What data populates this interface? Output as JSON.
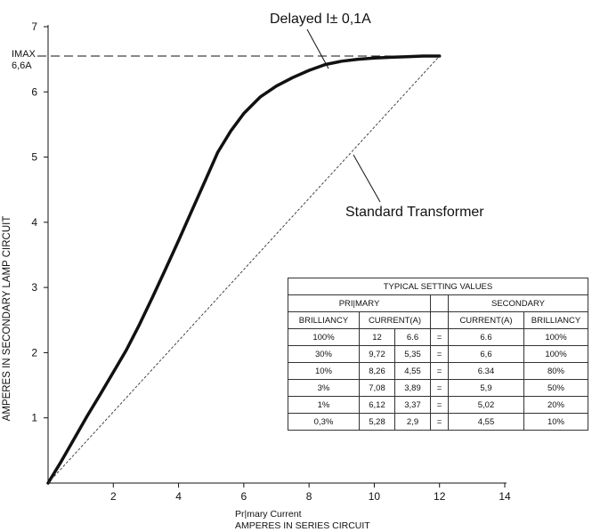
{
  "chart_data": {
    "type": "line",
    "title": "",
    "xlabel": "Pr|mary Current",
    "xlabel2": "AMPERES IN SERIES CIRCUIT",
    "ylabel": "AMPERES IN SECONDARY LAMP CIRCUIT",
    "xlim": [
      0,
      14
    ],
    "ylim": [
      0,
      7
    ],
    "xticks": [
      "2",
      "4",
      "6",
      "8",
      "10",
      "12",
      "14"
    ],
    "yticks": [
      "1",
      "2",
      "3",
      "4",
      "5",
      "6",
      "7"
    ],
    "grid": false,
    "series": [
      {
        "style": "thick",
        "x": [
          0,
          0.4,
          0.8,
          1.2,
          1.6,
          2.0,
          2.4,
          2.8,
          3.2,
          3.6,
          4.0,
          4.4,
          4.8,
          5.2,
          5.6,
          6.0,
          6.5,
          7.0,
          7.5,
          8.0,
          8.5,
          9.0,
          9.5,
          10.0,
          10.5,
          11.0,
          11.5,
          12.0
        ],
        "y": [
          0,
          0.33,
          0.68,
          1.03,
          1.36,
          1.7,
          2.04,
          2.43,
          2.85,
          3.28,
          3.72,
          4.17,
          4.62,
          5.07,
          5.4,
          5.67,
          5.92,
          6.09,
          6.22,
          6.33,
          6.42,
          6.47,
          6.5,
          6.52,
          6.53,
          6.54,
          6.55,
          6.55
        ]
      },
      {
        "style": "thin-dashed",
        "x": [
          0,
          12
        ],
        "y": [
          0,
          6.55
        ]
      }
    ],
    "reference_line": {
      "y": 6.55,
      "label_line1": "IMAX",
      "label_line2": "6,6A"
    },
    "annotations": [
      {
        "text": "Delayed I± 0,1A",
        "x": 8.5,
        "y": 6.42
      },
      {
        "text": "Standard Transformer",
        "x": 9.3,
        "y": 5.05
      }
    ]
  },
  "table": {
    "title": "TYPICAL SETTING VALUES",
    "primary_header": "PRI|MARY",
    "secondary_header": "SECONDARY",
    "col_headers": [
      "BRILLIANCY",
      "CURRENT(A)",
      "CURRENT(A)",
      "BRILLIANCY"
    ],
    "rows": [
      {
        "brilliancy": "100%",
        "cur1": "12",
        "cur2": "6.6",
        "eq": "=",
        "sec_current": "6.6",
        "sec_brilliancy": "100%"
      },
      {
        "brilliancy": "30%",
        "cur1": "9,72",
        "cur2": "5,35",
        "eq": "=",
        "sec_current": "6,6",
        "sec_brilliancy": "100%"
      },
      {
        "brilliancy": "10%",
        "cur1": "8,26",
        "cur2": "4,55",
        "eq": "=",
        "sec_current": "6.34",
        "sec_brilliancy": "80%"
      },
      {
        "brilliancy": "3%",
        "cur1": "7,08",
        "cur2": "3,89",
        "eq": "=",
        "sec_current": "5,9",
        "sec_brilliancy": "50%"
      },
      {
        "brilliancy": "1%",
        "cur1": "6,12",
        "cur2": "3,37",
        "eq": "=",
        "sec_current": "5,02",
        "sec_brilliancy": "20%"
      },
      {
        "brilliancy": "0,3%",
        "cur1": "5,28",
        "cur2": "2,9",
        "eq": "=",
        "sec_current": "4,55",
        "sec_brilliancy": "10%"
      }
    ]
  }
}
